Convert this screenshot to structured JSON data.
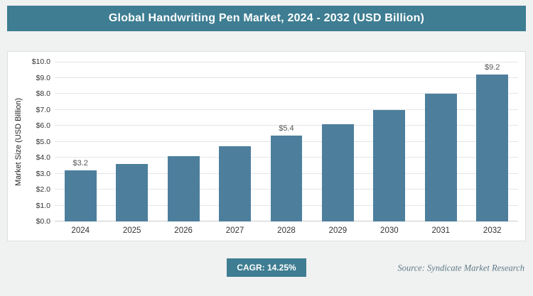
{
  "header": {
    "title": "Global Handwriting Pen Market, 2024 - 2032 (USD Billion)"
  },
  "footer": {
    "cagr_label": "CAGR: 14.25%",
    "source": "Source: Syndicate Market Research"
  },
  "colors": {
    "accent": "#3e7d92",
    "bar": "#4d7f9d",
    "grid": "#e3e6e7"
  },
  "chart_data": {
    "type": "bar",
    "title": "Global Handwriting Pen Market, 2024 - 2032 (USD Billion)",
    "categories": [
      "2024",
      "2025",
      "2026",
      "2027",
      "2028",
      "2029",
      "2030",
      "2031",
      "2032"
    ],
    "values": [
      3.2,
      3.6,
      4.1,
      4.7,
      5.4,
      6.1,
      7.0,
      8.0,
      9.2
    ],
    "data_labels": [
      "$3.2",
      "",
      "",
      "",
      "$5.4",
      "",
      "",
      "",
      "$9.2"
    ],
    "xlabel": "",
    "ylabel": "Market Size (USD Billion)",
    "ylim": [
      0,
      10
    ],
    "y_tick_step": 1.0,
    "y_ticks": [
      "$0.0",
      "$1.0",
      "$2.0",
      "$3.0",
      "$4.0",
      "$5.0",
      "$6.0",
      "$7.0",
      "$8.0",
      "$9.0",
      "$10.0"
    ],
    "grid": true,
    "legend": false,
    "cagr": "14.25%"
  }
}
